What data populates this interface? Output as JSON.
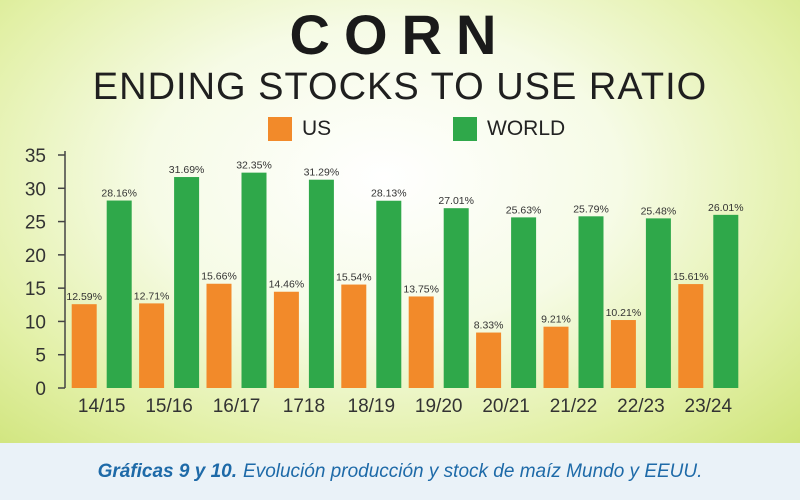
{
  "caption": {
    "bold": "Gráficas 9 y 10.",
    "text": "Evolución producción y stock de maíz Mundo y EEUU."
  },
  "colors": {
    "us": "#f28a2a",
    "world": "#2fa84a"
  },
  "chart_data": {
    "type": "bar",
    "title": "CORN",
    "subtitle": "ENDING STOCKS TO USE RATIO",
    "categories": [
      "14/15",
      "15/16",
      "16/17",
      "1718",
      "18/19",
      "19/20",
      "20/21",
      "21/22",
      "22/23",
      "23/24"
    ],
    "series": [
      {
        "name": "US",
        "values": [
          12.59,
          12.71,
          15.66,
          14.46,
          15.54,
          13.75,
          8.33,
          9.21,
          10.21,
          15.61
        ],
        "labels": [
          "12.59%",
          "12.71%",
          "15.66%",
          "14.46%",
          "15.54%",
          "13.75%",
          "8.33%",
          "9.21%",
          "10.21%",
          "15.61%"
        ]
      },
      {
        "name": "WORLD",
        "values": [
          28.16,
          31.69,
          32.35,
          31.29,
          28.13,
          27.01,
          25.63,
          25.79,
          25.48,
          26.01
        ],
        "labels": [
          "28.16%",
          "31.69%",
          "32.35%",
          "31.29%",
          "28.13%",
          "27.01%",
          "25.63%",
          "25.79%",
          "25.48%",
          "26.01%"
        ]
      }
    ],
    "ylim": [
      0,
      35
    ],
    "yticks": [
      "0",
      "5",
      "10",
      "15",
      "20",
      "25",
      "30",
      "35"
    ],
    "grid": false,
    "legend": "top-center"
  }
}
